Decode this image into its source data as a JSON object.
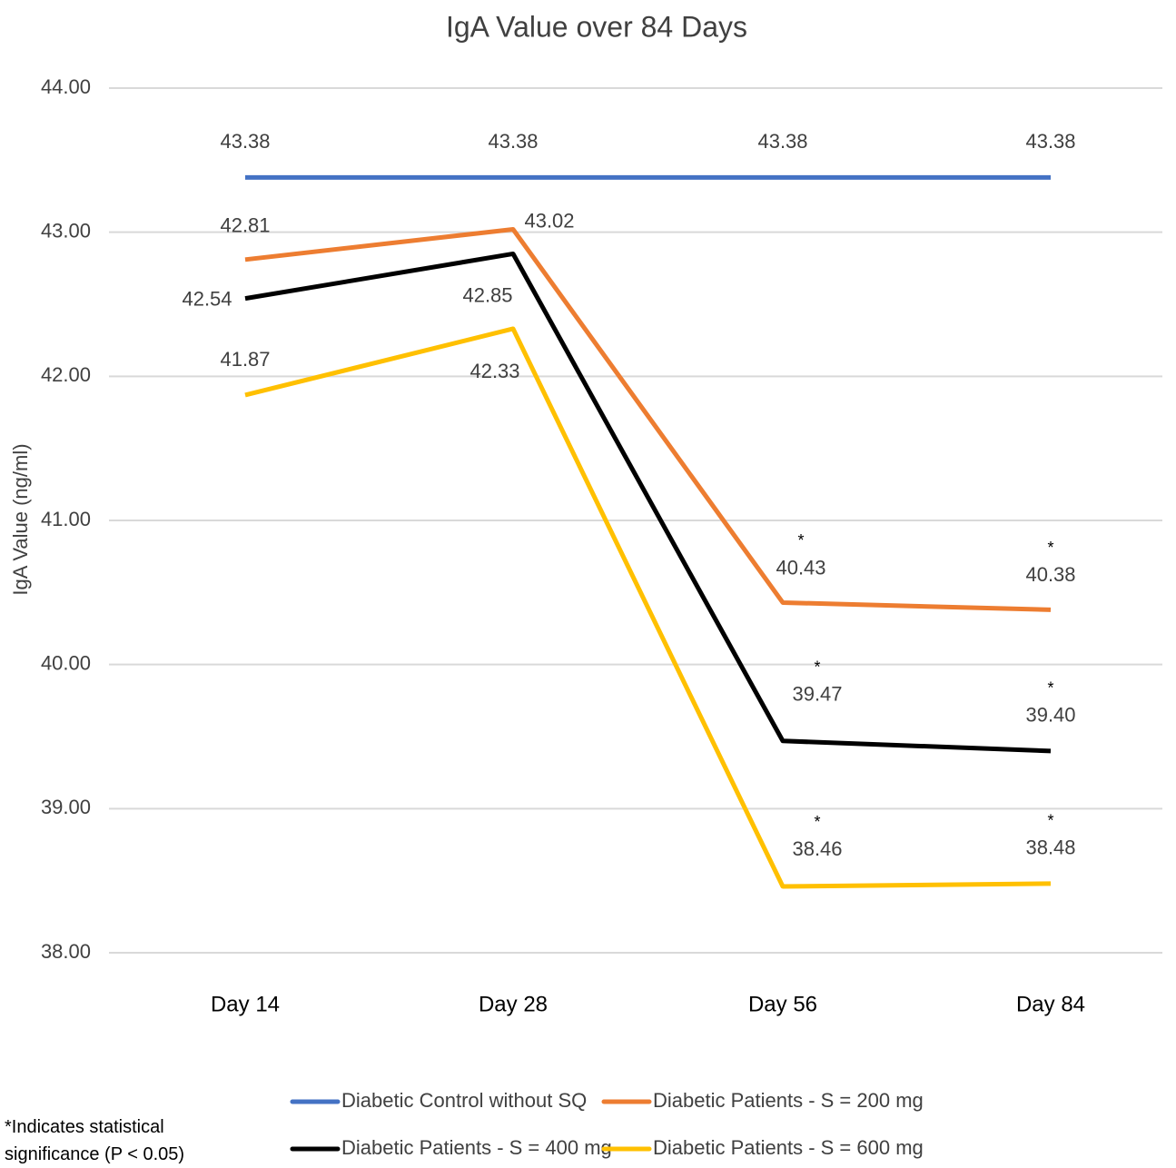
{
  "chart_data": {
    "type": "line",
    "title": "IgA Value over 84 Days",
    "y_label": "IgA Value (ng/ml)",
    "categories": [
      "Day 14",
      "Day 28",
      "Day 56",
      "Day 84"
    ],
    "ylim": [
      38,
      44
    ],
    "yticks": [
      {
        "value": 38,
        "label": "38.00"
      },
      {
        "value": 39,
        "label": "39.00"
      },
      {
        "value": 40,
        "label": "40.00"
      },
      {
        "value": 41,
        "label": "41.00"
      },
      {
        "value": 42,
        "label": "42.00"
      },
      {
        "value": 43,
        "label": "43.00"
      },
      {
        "value": 44,
        "label": "44.00"
      }
    ],
    "grid": true,
    "legend": "bottom",
    "annotations": {
      "marker": "*",
      "note": "*Indicates statistical significance (P < 0.05)"
    },
    "series": [
      {
        "name": "Diabetic Control without SQ",
        "color": "#4472c4",
        "values": [
          43.38,
          43.38,
          43.38,
          43.38
        ],
        "significant": [
          false,
          false,
          false,
          false
        ]
      },
      {
        "name": "Diabetic Patients - S = 200 mg",
        "color": "#ed7d31",
        "values": [
          42.81,
          43.02,
          40.43,
          40.38
        ],
        "significant": [
          false,
          false,
          true,
          true
        ]
      },
      {
        "name": "Diabetic Patients - S = 400 mg",
        "color": "#000000",
        "values": [
          42.54,
          42.85,
          39.47,
          39.4
        ],
        "value_labels": [
          "42.54",
          "42.85",
          "39.47",
          "39.40"
        ],
        "significant": [
          false,
          false,
          true,
          true
        ]
      },
      {
        "name": "Diabetic Patients - S = 600 mg",
        "color": "#ffc000",
        "values": [
          41.87,
          42.33,
          38.46,
          38.48
        ],
        "significant": [
          false,
          false,
          true,
          true
        ]
      }
    ]
  }
}
